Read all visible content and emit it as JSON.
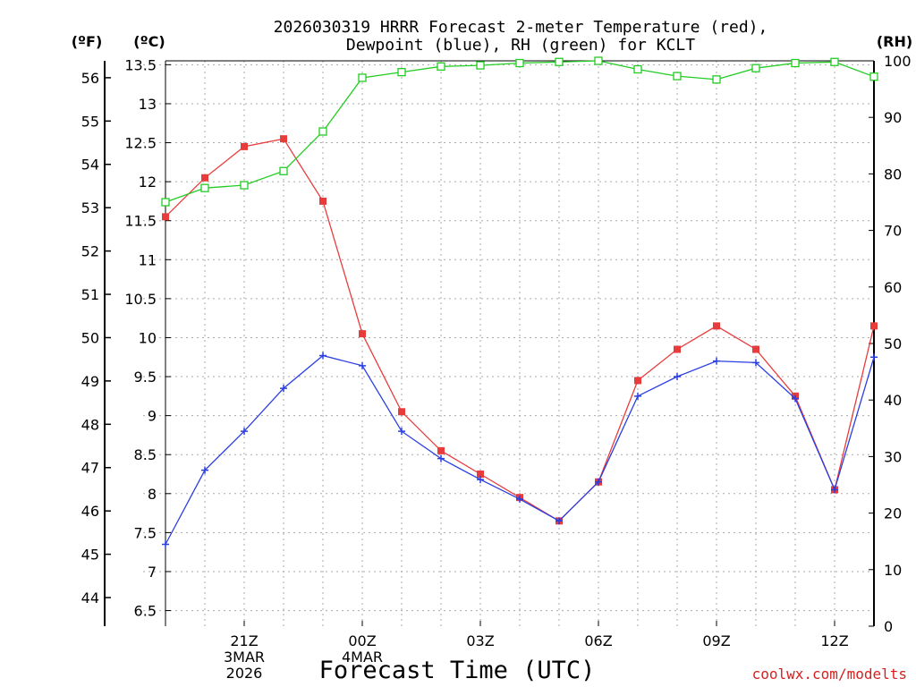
{
  "chart_data": {
    "type": "line",
    "title_lines": [
      "2026030319 HRRR Forecast 2-meter Temperature (red),",
      "Dewpoint (blue), RH (green) for KCLT"
    ],
    "xlabel": "Forecast Time (UTC)",
    "credit": "coolwx.com/modelts",
    "units": {
      "fahrenheit": "(ºF)",
      "celsius": "(ºC)",
      "rh": "(RH)"
    },
    "x_hours": [
      0,
      1,
      2,
      3,
      4,
      5,
      6,
      7,
      8,
      9,
      10,
      11,
      12,
      13,
      14,
      15,
      16,
      17,
      18
    ],
    "x_ticks": [
      {
        "hour": 2,
        "lines": [
          "21Z",
          "3MAR",
          "2026"
        ]
      },
      {
        "hour": 5,
        "lines": [
          "00Z",
          "4MAR"
        ]
      },
      {
        "hour": 8,
        "lines": [
          "03Z"
        ]
      },
      {
        "hour": 11,
        "lines": [
          "06Z"
        ]
      },
      {
        "hour": 14,
        "lines": [
          "09Z"
        ]
      },
      {
        "hour": 17,
        "lines": [
          "12Z"
        ]
      }
    ],
    "celsius_axis": {
      "ylim": [
        6.3,
        13.55
      ],
      "ticks": [
        "6.5",
        "7",
        "7.5",
        "8",
        "8.5",
        "9",
        "9.5",
        "10",
        "10.5",
        "11",
        "11.5",
        "12",
        "12.5",
        "13",
        "13.5"
      ]
    },
    "fahrenheit_axis": {
      "ticks": [
        "44",
        "45",
        "46",
        "47",
        "48",
        "49",
        "50",
        "51",
        "52",
        "53",
        "54",
        "55",
        "56"
      ]
    },
    "rh_axis": {
      "ylim": [
        0,
        100
      ],
      "ticks": [
        "0",
        "10",
        "20",
        "30",
        "40",
        "50",
        "60",
        "70",
        "80",
        "90",
        "100"
      ]
    },
    "series": [
      {
        "name": "Temperature",
        "axis": "celsius",
        "color": "#e83c3c",
        "marker": "filled-square",
        "values": [
          11.55,
          12.05,
          12.45,
          12.55,
          11.75,
          10.05,
          9.05,
          8.55,
          8.25,
          7.95,
          7.65,
          8.15,
          9.45,
          9.85,
          10.15,
          9.85,
          9.25,
          8.05,
          10.15
        ]
      },
      {
        "name": "Dewpoint",
        "axis": "celsius",
        "color": "#2a3fe0",
        "marker": "plus",
        "values": [
          7.35,
          8.3,
          8.8,
          9.35,
          9.77,
          9.64,
          8.8,
          8.45,
          8.18,
          7.93,
          7.65,
          8.15,
          9.25,
          9.5,
          9.7,
          9.68,
          9.22,
          8.05,
          9.75
        ]
      },
      {
        "name": "RH",
        "axis": "rh",
        "color": "#22cc22",
        "marker": "open-square",
        "values": [
          75,
          77.5,
          78,
          80.5,
          87.5,
          97,
          98,
          99,
          99.2,
          99.6,
          99.8,
          100,
          98.5,
          97.3,
          96.7,
          98.7,
          99.6,
          99.8,
          97.2
        ]
      }
    ]
  }
}
